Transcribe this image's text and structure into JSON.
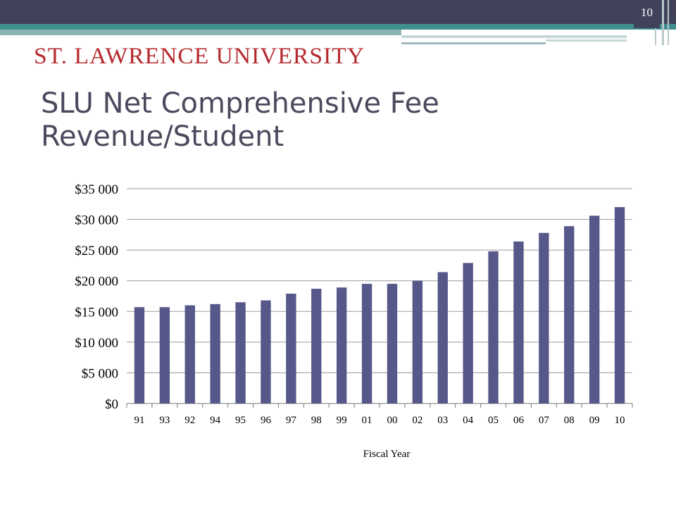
{
  "slide": {
    "page_number": "10",
    "logo_text": "ST. LAWRENCE UNIVERSITY",
    "title_line1": "SLU Net Comprehensive Fee",
    "title_line2": "Revenue/Student"
  },
  "colors": {
    "bar": "#565889",
    "header": "#41425a",
    "accent": "#3f8f8e",
    "logo": "#b5292e",
    "title": "#4a4a5e"
  },
  "chart_data": {
    "type": "bar",
    "title": "",
    "xlabel": "Fiscal Year",
    "ylabel": "",
    "ylim": [
      0,
      35000
    ],
    "yticks": [
      0,
      5000,
      10000,
      15000,
      20000,
      25000,
      30000,
      35000
    ],
    "ytick_labels": [
      "$0",
      "$5 000",
      "$10 000",
      "$15 000",
      "$20 000",
      "$25 000",
      "$30 000",
      "$35 000"
    ],
    "grid": true,
    "legend": "none",
    "categories": [
      "91",
      "93",
      "92",
      "94",
      "95",
      "96",
      "97",
      "98",
      "99",
      "01",
      "00",
      "02",
      "03",
      "04",
      "05",
      "06",
      "07",
      "08",
      "09",
      "10"
    ],
    "values": [
      15700,
      15700,
      16000,
      16200,
      16500,
      16800,
      17900,
      18700,
      18900,
      19500,
      19500,
      20000,
      21400,
      22900,
      24800,
      26400,
      27800,
      28900,
      30600,
      32000
    ]
  }
}
